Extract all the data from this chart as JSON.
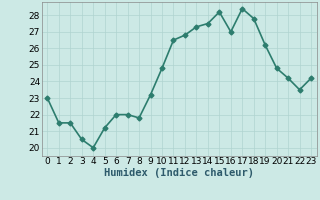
{
  "xlabel": "Humidex (Indice chaleur)",
  "x": [
    0,
    1,
    2,
    3,
    4,
    5,
    6,
    7,
    8,
    9,
    10,
    11,
    12,
    13,
    14,
    15,
    16,
    17,
    18,
    19,
    20,
    21,
    22,
    23
  ],
  "y": [
    23,
    21.5,
    21.5,
    20.5,
    20,
    21.2,
    22,
    22,
    21.8,
    23.2,
    24.8,
    26.5,
    26.8,
    27.3,
    27.5,
    28.2,
    27.0,
    28.4,
    27.8,
    26.2,
    24.8,
    24.2,
    23.5,
    24.2
  ],
  "line_color": "#2d7d6e",
  "marker": "D",
  "marker_size": 2.5,
  "background_color": "#cce9e5",
  "grid_color": "#b0d4d0",
  "ylim": [
    19.5,
    28.8
  ],
  "yticks": [
    20,
    21,
    22,
    23,
    24,
    25,
    26,
    27,
    28
  ],
  "tick_fontsize": 6.5,
  "xlabel_fontsize": 7.5,
  "line_width": 1.2
}
